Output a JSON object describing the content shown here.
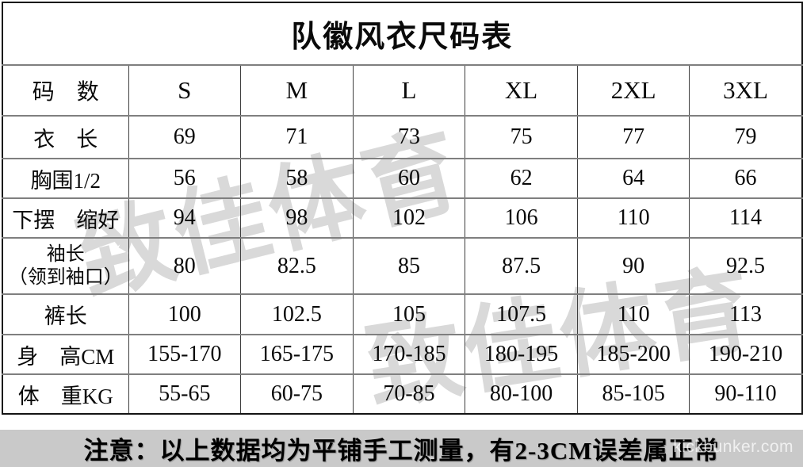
{
  "title": "队徽风衣尺码表",
  "table": {
    "header": {
      "label": "码　数",
      "sizes": [
        "S",
        "M",
        "L",
        "XL",
        "2XL",
        "3XL"
      ]
    },
    "rows": [
      {
        "label": "衣　长",
        "values": [
          "69",
          "71",
          "73",
          "75",
          "77",
          "79"
        ]
      },
      {
        "label": "胸围1/2",
        "values": [
          "56",
          "58",
          "60",
          "62",
          "64",
          "66"
        ]
      },
      {
        "label": "下摆　缩好",
        "values": [
          "94",
          "98",
          "102",
          "106",
          "110",
          "114"
        ]
      },
      {
        "label": "袖长",
        "label_line2": "（领到袖口）",
        "values": [
          "80",
          "82.5",
          "85",
          "87.5",
          "90",
          "92.5"
        ]
      },
      {
        "label": "裤长",
        "values": [
          "100",
          "102.5",
          "105",
          "107.5",
          "110",
          "113"
        ]
      },
      {
        "label": "身　高CM",
        "values": [
          "155-170",
          "165-175",
          "170-185",
          "180-195",
          "185-200",
          "190-210"
        ]
      },
      {
        "label": "体　重KG",
        "values": [
          "55-65",
          "60-75",
          "70-85",
          "80-100",
          "85-105",
          "90-110"
        ]
      }
    ]
  },
  "note": "注意：以上数据均为平铺手工测量，有2-3CM误差属正常",
  "watermarks": {
    "brand": "致佳体育",
    "site": "kickbunker.com"
  },
  "colors": {
    "note_bar_bg": "#c9c9c9",
    "watermark_gray": "#d9d9d9",
    "grid_line": "#7f7f7f",
    "outer_border": "#141414",
    "text": "#0a0a0a"
  }
}
